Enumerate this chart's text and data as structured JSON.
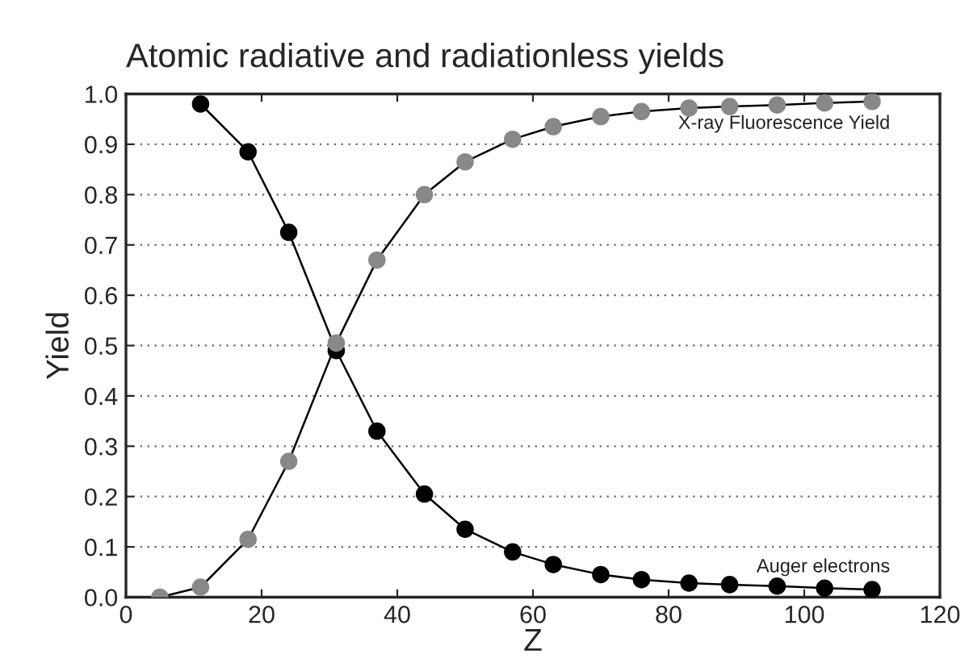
{
  "chart_data": {
    "type": "line",
    "title": "Atomic radiative and radiationless yields",
    "xlabel": "Z",
    "ylabel": "Yield",
    "xlim": [
      0,
      120
    ],
    "xticks": [
      0,
      20,
      40,
      60,
      80,
      100,
      120
    ],
    "ylim": [
      0,
      1
    ],
    "yticks": [
      {
        "value": 0,
        "label": "0.0"
      },
      {
        "value": 0.1,
        "label": "0.1"
      },
      {
        "value": 0.2,
        "label": "0.2"
      },
      {
        "value": 0.3,
        "label": "0.3"
      },
      {
        "value": 0.4,
        "label": "0.4"
      },
      {
        "value": 0.5,
        "label": "0.5"
      },
      {
        "value": 0.6,
        "label": "0.6"
      },
      {
        "value": 0.7,
        "label": "0.7"
      },
      {
        "value": 0.8,
        "label": "0.8"
      },
      {
        "value": 0.9,
        "label": "0.9"
      },
      {
        "value": 1,
        "label": "1.0"
      }
    ],
    "grid": "y",
    "marker": "circle",
    "line_style": "solid",
    "legend": false,
    "series": [
      {
        "name": "X-ray Fluorescence Yield",
        "color": "#888888",
        "x": [
          5,
          11,
          18,
          24,
          31,
          37,
          44,
          50,
          57,
          63,
          70,
          76,
          83,
          89,
          96,
          103,
          110
        ],
        "values": [
          0.0,
          0.02,
          0.115,
          0.27,
          0.505,
          0.67,
          0.8,
          0.865,
          0.91,
          0.935,
          0.955,
          0.965,
          0.972,
          0.975,
          0.978,
          0.982,
          0.985
        ]
      },
      {
        "name": "Auger electrons",
        "color": "#000000",
        "x": [
          11,
          18,
          24,
          31,
          37,
          44,
          50,
          57,
          63,
          70,
          76,
          83,
          89,
          96,
          103,
          110
        ],
        "values": [
          0.98,
          0.885,
          0.725,
          0.49,
          0.33,
          0.205,
          0.135,
          0.09,
          0.065,
          0.045,
          0.035,
          0.028,
          0.025,
          0.022,
          0.018,
          0.015
        ]
      }
    ]
  }
}
